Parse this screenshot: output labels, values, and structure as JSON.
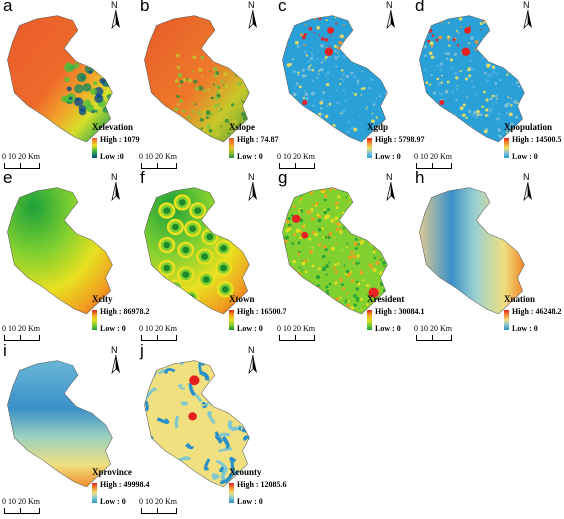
{
  "panels": [
    {
      "letter": "a",
      "variable": "Xelevation",
      "high_label": "High : 1079",
      "low_label": "Low :0",
      "gradient": [
        "#f05a2a",
        "#f6a32a",
        "#e8e424",
        "#4fbf3a",
        "#1c8a5a",
        "#0a4c8c"
      ]
    },
    {
      "letter": "b",
      "variable": "Xslope",
      "high_label": "High : 74.87",
      "low_label": "Low : 0",
      "gradient": [
        "#e85c2a",
        "#f08a2a",
        "#e6c22a",
        "#8ac23a",
        "#2a8a3a"
      ]
    },
    {
      "letter": "c",
      "variable": "Xgdp",
      "high_label": "High : 5798.97",
      "low_label": "Low : 0",
      "gradient": [
        "#e82020",
        "#f09030",
        "#f0e060",
        "#7fc0d8",
        "#2aa0d8"
      ]
    },
    {
      "letter": "d",
      "variable": "Xpopulation",
      "high_label": "High : 14500.5",
      "low_label": "Low : 0",
      "gradient": [
        "#e82020",
        "#f09030",
        "#f0e060",
        "#7fc0d8",
        "#2aa0d8"
      ]
    },
    {
      "letter": "e",
      "variable": "Xcity",
      "high_label": "High : 86978.2",
      "low_label": "Low : 0",
      "gradient": [
        "#e82020",
        "#f0a020",
        "#e8e020",
        "#80d030",
        "#1ca03a"
      ]
    },
    {
      "letter": "f",
      "variable": "Xtown",
      "high_label": "High : 16500.7",
      "low_label": "Low : 0",
      "gradient": [
        "#e82020",
        "#f0a020",
        "#e8e020",
        "#80d030",
        "#1c8a2a"
      ]
    },
    {
      "letter": "g",
      "variable": "Xresident",
      "high_label": "High : 30084.1",
      "low_label": "Low : 0",
      "gradient": [
        "#e82020",
        "#f0a020",
        "#e8e020",
        "#80d030",
        "#1ca03a"
      ]
    },
    {
      "letter": "h",
      "variable": "Xnation",
      "high_label": "High : 46248.2",
      "low_label": "Low : 0",
      "gradient": [
        "#e82020",
        "#f09030",
        "#f0e080",
        "#80c8d0",
        "#2a90c8"
      ]
    },
    {
      "letter": "i",
      "variable": "Xprovince",
      "high_label": "High : 49998.4",
      "low_label": "Low : 0",
      "gradient": [
        "#e82020",
        "#f09030",
        "#f0e080",
        "#80c8d0",
        "#2a90c8"
      ]
    },
    {
      "letter": "j",
      "variable": "Xcounty",
      "high_label": "High : 12085.6",
      "low_label": "Low : 0",
      "gradient": [
        "#e82020",
        "#f09030",
        "#f0e080",
        "#80c8d0",
        "#2a90c8"
      ]
    }
  ],
  "scale_bar": {
    "ticks": "0   10  20 Km"
  },
  "north_label": "N"
}
